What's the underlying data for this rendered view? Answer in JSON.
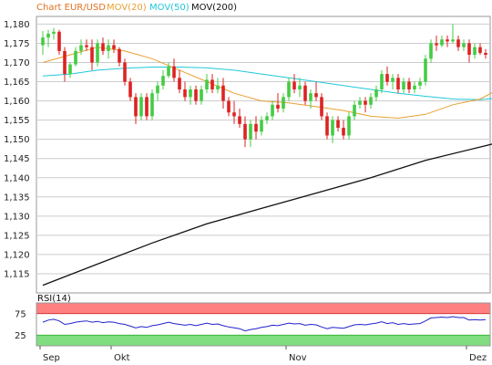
{
  "chart_data": [
    {
      "type": "candlestick",
      "legend": [
        {
          "label": "Chart EUR/USD",
          "color": "#e07020"
        },
        {
          "label": "MOV(20)",
          "color": "#e8a030"
        },
        {
          "label": "MOV(50)",
          "color": "#20c8d8"
        },
        {
          "label": "MOV(200)",
          "color": "#111111"
        }
      ],
      "ylim": [
        1.11,
        1.182
      ],
      "yticks": [
        {
          "v": 1.18,
          "label": "1,180"
        },
        {
          "v": 1.175,
          "label": "1,175"
        },
        {
          "v": 1.17,
          "label": "1,170"
        },
        {
          "v": 1.165,
          "label": "1,165"
        },
        {
          "v": 1.16,
          "label": "1,160"
        },
        {
          "v": 1.155,
          "label": "1,155"
        },
        {
          "v": 1.15,
          "label": "1,150"
        },
        {
          "v": 1.145,
          "label": "1,145"
        },
        {
          "v": 1.14,
          "label": "1,140"
        },
        {
          "v": 1.135,
          "label": "1,135"
        },
        {
          "v": 1.13,
          "label": "1,130"
        },
        {
          "v": 1.125,
          "label": "1,125"
        },
        {
          "v": 1.12,
          "label": "1,120"
        },
        {
          "v": 1.115,
          "label": "1,115"
        }
      ],
      "xticks": [
        {
          "i": 0,
          "label": "Sep"
        },
        {
          "i": 13,
          "label": "Okt"
        },
        {
          "i": 45,
          "label": "Nov"
        },
        {
          "i": 78,
          "label": "Dez"
        }
      ],
      "up_color": "#44cc44",
      "down_color": "#dd2222",
      "candles": [
        [
          1.1745,
          1.1782,
          1.172,
          1.1765
        ],
        [
          1.1765,
          1.1785,
          1.174,
          1.1775
        ],
        [
          1.1775,
          1.179,
          1.176,
          1.178
        ],
        [
          1.178,
          1.1785,
          1.172,
          1.173
        ],
        [
          1.173,
          1.174,
          1.165,
          1.167
        ],
        [
          1.167,
          1.17,
          1.166,
          1.1695
        ],
        [
          1.1695,
          1.174,
          1.169,
          1.173
        ],
        [
          1.173,
          1.176,
          1.172,
          1.1745
        ],
        [
          1.1745,
          1.176,
          1.173,
          1.174
        ],
        [
          1.174,
          1.176,
          1.168,
          1.17
        ],
        [
          1.17,
          1.176,
          1.169,
          1.175
        ],
        [
          1.175,
          1.1765,
          1.172,
          1.173
        ],
        [
          1.173,
          1.176,
          1.171,
          1.1745
        ],
        [
          1.1745,
          1.176,
          1.1725,
          1.1735
        ],
        [
          1.1735,
          1.174,
          1.169,
          1.17
        ],
        [
          1.17,
          1.171,
          1.164,
          1.165
        ],
        [
          1.165,
          1.166,
          1.16,
          1.161
        ],
        [
          1.161,
          1.162,
          1.154,
          1.156
        ],
        [
          1.156,
          1.162,
          1.155,
          1.161
        ],
        [
          1.161,
          1.162,
          1.155,
          1.156
        ],
        [
          1.156,
          1.163,
          1.155,
          1.162
        ],
        [
          1.162,
          1.165,
          1.16,
          1.164
        ],
        [
          1.164,
          1.168,
          1.163,
          1.1665
        ],
        [
          1.1665,
          1.17,
          1.166,
          1.169
        ],
        [
          1.169,
          1.171,
          1.165,
          1.166
        ],
        [
          1.166,
          1.168,
          1.162,
          1.163
        ],
        [
          1.163,
          1.165,
          1.16,
          1.161
        ],
        [
          1.161,
          1.164,
          1.159,
          1.163
        ],
        [
          1.163,
          1.164,
          1.159,
          1.16
        ],
        [
          1.16,
          1.164,
          1.159,
          1.163
        ],
        [
          1.163,
          1.167,
          1.162,
          1.1655
        ],
        [
          1.1655,
          1.167,
          1.162,
          1.163
        ],
        [
          1.163,
          1.166,
          1.162,
          1.164
        ],
        [
          1.164,
          1.166,
          1.158,
          1.16
        ],
        [
          1.16,
          1.161,
          1.156,
          1.157
        ],
        [
          1.157,
          1.16,
          1.154,
          1.156
        ],
        [
          1.156,
          1.158,
          1.153,
          1.154
        ],
        [
          1.154,
          1.156,
          1.148,
          1.15
        ],
        [
          1.15,
          1.155,
          1.148,
          1.154
        ],
        [
          1.154,
          1.156,
          1.15,
          1.152
        ],
        [
          1.152,
          1.156,
          1.151,
          1.155
        ],
        [
          1.155,
          1.157,
          1.154,
          1.156
        ],
        [
          1.156,
          1.16,
          1.155,
          1.159
        ],
        [
          1.159,
          1.162,
          1.157,
          1.158
        ],
        [
          1.158,
          1.162,
          1.157,
          1.161
        ],
        [
          1.161,
          1.166,
          1.16,
          1.165
        ],
        [
          1.165,
          1.167,
          1.162,
          1.163
        ],
        [
          1.163,
          1.166,
          1.161,
          1.164
        ],
        [
          1.164,
          1.165,
          1.159,
          1.16
        ],
        [
          1.16,
          1.163,
          1.158,
          1.162
        ],
        [
          1.162,
          1.165,
          1.16,
          1.161
        ],
        [
          1.161,
          1.162,
          1.155,
          1.156
        ],
        [
          1.156,
          1.157,
          1.15,
          1.151
        ],
        [
          1.151,
          1.156,
          1.149,
          1.155
        ],
        [
          1.155,
          1.156,
          1.152,
          1.153
        ],
        [
          1.153,
          1.155,
          1.15,
          1.151
        ],
        [
          1.151,
          1.157,
          1.15,
          1.156
        ],
        [
          1.156,
          1.16,
          1.155,
          1.159
        ],
        [
          1.159,
          1.161,
          1.158,
          1.16
        ],
        [
          1.16,
          1.161,
          1.157,
          1.159
        ],
        [
          1.159,
          1.162,
          1.158,
          1.161
        ],
        [
          1.161,
          1.164,
          1.16,
          1.163
        ],
        [
          1.163,
          1.168,
          1.162,
          1.167
        ],
        [
          1.167,
          1.169,
          1.164,
          1.165
        ],
        [
          1.165,
          1.167,
          1.163,
          1.166
        ],
        [
          1.166,
          1.167,
          1.162,
          1.163
        ],
        [
          1.163,
          1.166,
          1.162,
          1.165
        ],
        [
          1.165,
          1.166,
          1.162,
          1.163
        ],
        [
          1.163,
          1.165,
          1.162,
          1.164
        ],
        [
          1.164,
          1.166,
          1.163,
          1.165
        ],
        [
          1.165,
          1.172,
          1.164,
          1.171
        ],
        [
          1.171,
          1.176,
          1.17,
          1.175
        ],
        [
          1.175,
          1.177,
          1.173,
          1.1745
        ],
        [
          1.1745,
          1.177,
          1.174,
          1.176
        ],
        [
          1.176,
          1.177,
          1.174,
          1.1755
        ],
        [
          1.1755,
          1.18,
          1.175,
          1.176
        ],
        [
          1.176,
          1.177,
          1.173,
          1.174
        ],
        [
          1.174,
          1.176,
          1.173,
          1.175
        ],
        [
          1.175,
          1.176,
          1.17,
          1.172
        ],
        [
          1.172,
          1.175,
          1.171,
          1.174
        ],
        [
          1.174,
          1.175,
          1.172,
          1.1725
        ],
        [
          1.1725,
          1.1735,
          1.171,
          1.172
        ]
      ],
      "mov20": [
        [
          0,
          1.17
        ],
        [
          5,
          1.172
        ],
        [
          10,
          1.174
        ],
        [
          15,
          1.173
        ],
        [
          20,
          1.171
        ],
        [
          25,
          1.168
        ],
        [
          30,
          1.165
        ],
        [
          35,
          1.162
        ],
        [
          40,
          1.16
        ],
        [
          45,
          1.1595
        ],
        [
          50,
          1.1585
        ],
        [
          55,
          1.1575
        ],
        [
          60,
          1.156
        ],
        [
          65,
          1.1555
        ],
        [
          70,
          1.1565
        ],
        [
          75,
          1.159
        ],
        [
          80,
          1.1605
        ],
        [
          82,
          1.162
        ],
        [
          85,
          1.165
        ],
        [
          88,
          1.1665
        ]
      ],
      "mov50": [
        [
          0,
          1.1665
        ],
        [
          5,
          1.167
        ],
        [
          10,
          1.168
        ],
        [
          15,
          1.1685
        ],
        [
          20,
          1.1688
        ],
        [
          25,
          1.1688
        ],
        [
          30,
          1.1686
        ],
        [
          35,
          1.168
        ],
        [
          40,
          1.167
        ],
        [
          45,
          1.166
        ],
        [
          50,
          1.165
        ],
        [
          55,
          1.164
        ],
        [
          60,
          1.163
        ],
        [
          65,
          1.162
        ],
        [
          70,
          1.1612
        ],
        [
          75,
          1.1605
        ],
        [
          80,
          1.1603
        ],
        [
          85,
          1.161
        ],
        [
          88,
          1.1612
        ]
      ],
      "mov200": [
        [
          0,
          1.112
        ],
        [
          10,
          1.1175
        ],
        [
          20,
          1.123
        ],
        [
          30,
          1.128
        ],
        [
          40,
          1.132
        ],
        [
          50,
          1.136
        ],
        [
          60,
          1.14
        ],
        [
          70,
          1.1445
        ],
        [
          80,
          1.148
        ],
        [
          88,
          1.1508
        ]
      ]
    },
    {
      "type": "line",
      "title": "RSI(14)",
      "ylim": [
        0,
        100
      ],
      "yticks": [
        {
          "v": 75,
          "label": "75"
        },
        {
          "v": 25,
          "label": "25"
        }
      ],
      "overbought": [
        75,
        100
      ],
      "oversold": [
        0,
        25
      ],
      "overbought_color": "#ff8080",
      "oversold_color": "#80dd80",
      "line_color": "#2222cc",
      "series": [
        {
          "values": [
            55,
            60,
            62,
            58,
            50,
            52,
            55,
            57,
            58,
            55,
            57,
            54,
            56,
            55,
            52,
            50,
            46,
            42,
            45,
            43,
            47,
            49,
            52,
            55,
            52,
            50,
            48,
            50,
            47,
            50,
            53,
            50,
            51,
            47,
            44,
            42,
            40,
            35,
            38,
            40,
            43,
            45,
            48,
            47,
            50,
            53,
            51,
            52,
            48,
            50,
            49,
            44,
            40,
            43,
            42,
            41,
            45,
            49,
            50,
            49,
            51,
            53,
            56,
            52,
            54,
            50,
            52,
            50,
            51,
            52,
            58,
            65,
            66,
            67,
            66,
            68,
            66,
            66,
            60,
            61,
            60,
            61
          ]
        }
      ]
    }
  ]
}
